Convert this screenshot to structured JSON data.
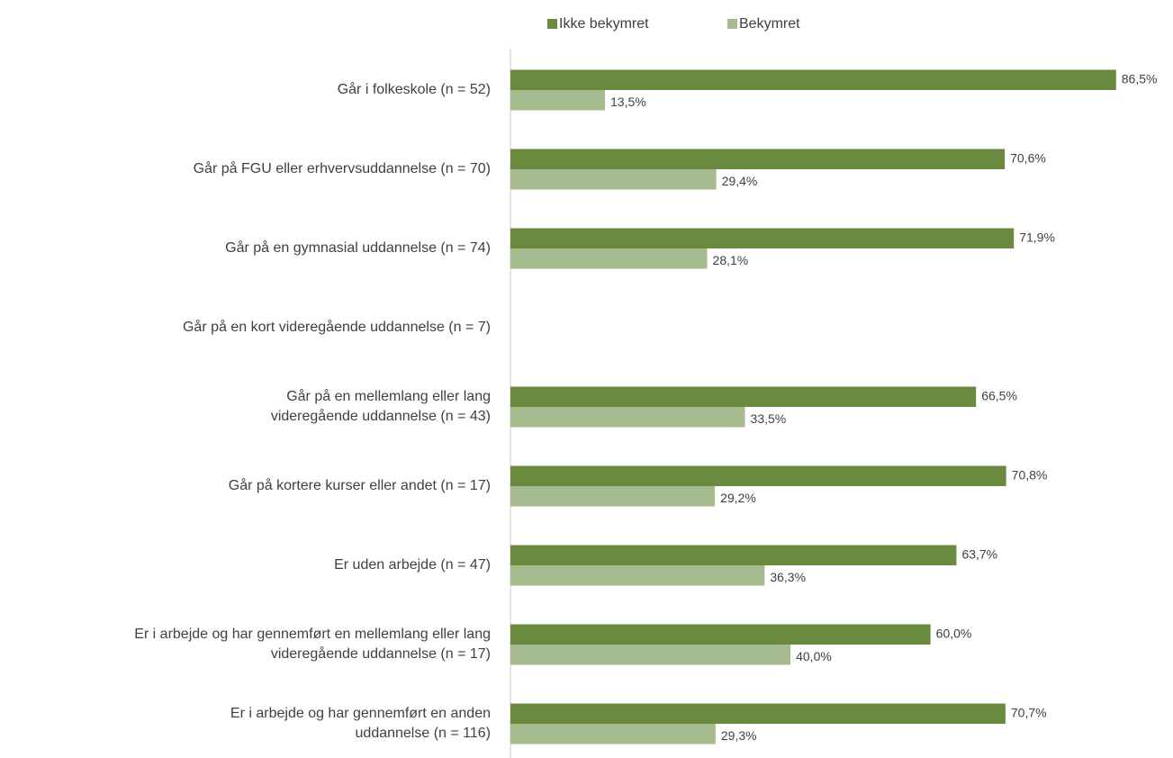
{
  "chart_data": {
    "type": "bar",
    "orientation": "horizontal",
    "categories": [
      [
        "Går i folkeskole (n = 52)"
      ],
      [
        "Går på FGU eller erhvervsuddannelse (n = 70)"
      ],
      [
        "Går på en gymnasial uddannelse (n = 74)"
      ],
      [
        "Går på en kort videregående uddannelse (n = 7)"
      ],
      [
        "Går på en mellemlang eller lang",
        "videregående uddannelse (n = 43)"
      ],
      [
        "Går på kortere kurser eller andet (n = 17)"
      ],
      [
        "Er uden arbejde (n = 47)"
      ],
      [
        "Er i arbejde og har gennemført en mellemlang eller lang",
        "videregående uddannelse (n = 17)"
      ],
      [
        "Er i arbejde og har gennemført en anden",
        "uddannelse (n = 116)"
      ]
    ],
    "series": [
      {
        "name": "Ikke bekymret",
        "color": "#6a8b3f",
        "values": [
          86.5,
          70.6,
          71.9,
          null,
          66.5,
          70.8,
          63.7,
          60.0,
          70.7
        ],
        "value_labels": [
          "86,5%",
          "70,6%",
          "71,9%",
          null,
          "66,5%",
          "70,8%",
          "63,7%",
          "60,0%",
          "70,7%"
        ]
      },
      {
        "name": "Bekymret",
        "color": "#a6bc8e",
        "values": [
          13.5,
          29.4,
          28.1,
          null,
          33.5,
          29.2,
          36.3,
          40.0,
          29.3
        ],
        "value_labels": [
          "13,5%",
          "29,4%",
          "28,1%",
          null,
          "33,5%",
          "29,2%",
          "36,3%",
          "40,0%",
          "29,3%"
        ]
      }
    ],
    "xlim": [
      0,
      90
    ],
    "legend": "top"
  }
}
